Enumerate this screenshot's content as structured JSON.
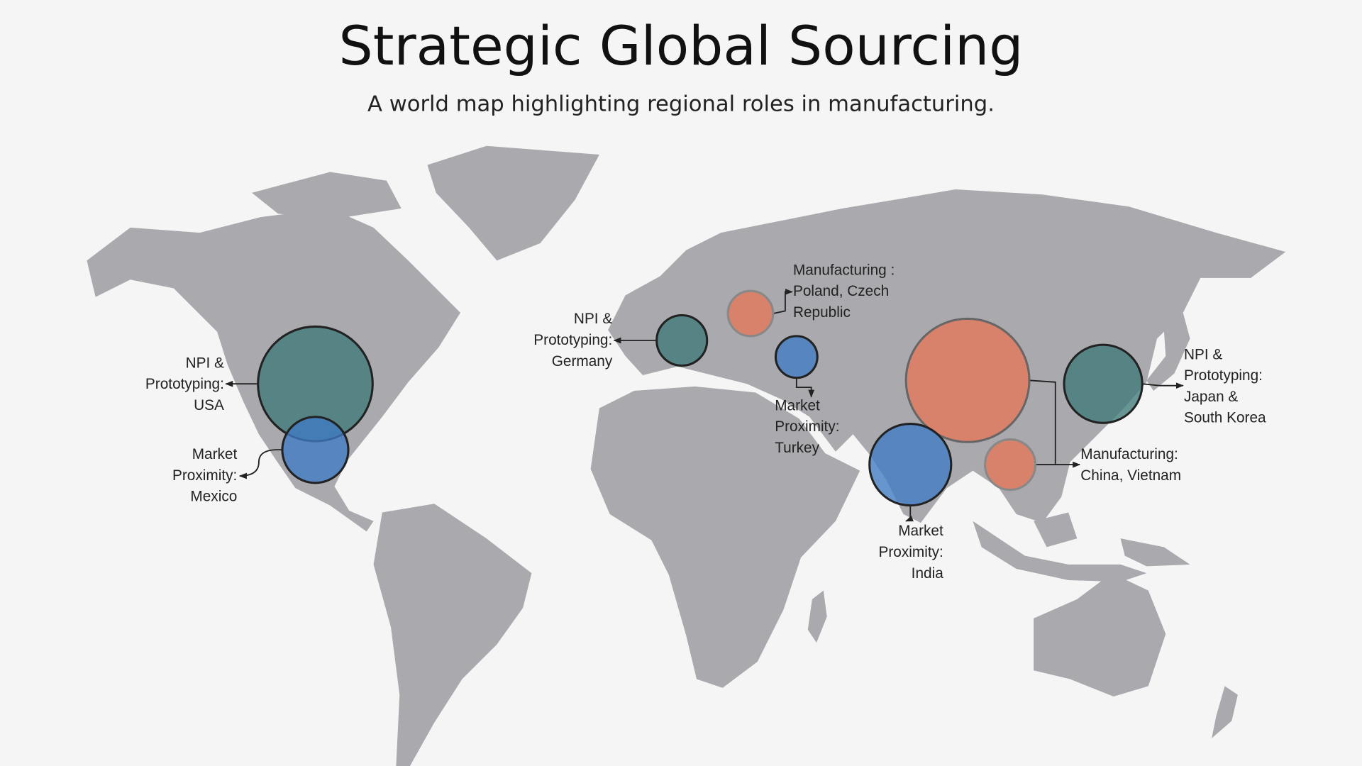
{
  "header": {
    "title": "Strategic Global Sourcing",
    "subtitle": "A world map highlighting regional roles in manufacturing."
  },
  "annotations": [
    {
      "lines": [
        "NPI &",
        "Prototyping:",
        "USA"
      ]
    },
    {
      "lines": [
        "Market",
        "Proximity:",
        "Mexico"
      ]
    },
    {
      "lines": [
        "NPI &",
        "Prototyping:",
        "Germany"
      ]
    },
    {
      "lines": [
        "Manufacturing :",
        "Poland, Czech",
        "Republic"
      ]
    },
    {
      "lines": [
        "Market",
        "Proximity:",
        "Turkey"
      ]
    },
    {
      "lines": [
        "Market",
        "Proximity:",
        "India"
      ]
    },
    {
      "lines": [
        "Manufacturing:",
        "China, Vietnam"
      ]
    },
    {
      "lines": [
        "NPI &",
        "Prototyping:",
        "Japan &",
        "South Korea"
      ]
    }
  ]
}
